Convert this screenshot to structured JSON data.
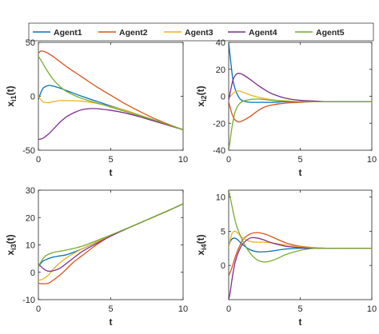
{
  "legend": {
    "placement": "top",
    "entries": [
      {
        "name": "Agent1",
        "color": "#0072BD"
      },
      {
        "name": "Agent2",
        "color": "#D95319"
      },
      {
        "name": "Agent3",
        "color": "#EDB120"
      },
      {
        "name": "Agent4",
        "color": "#7E2F8E"
      },
      {
        "name": "Agent5",
        "color": "#77AC30"
      }
    ]
  },
  "chart_data": [
    {
      "type": "line",
      "xlabel": "t",
      "ylabel": "x_i1(t)",
      "ylabel_main": "x",
      "ylabel_sub": "i1",
      "ylabel_tail": "(t)",
      "xlim": [
        0,
        10
      ],
      "ylim": [
        -50,
        50
      ],
      "xticks": [
        "0",
        "5",
        "10"
      ],
      "yticks": [
        "-50",
        "0",
        "50"
      ],
      "series": [
        {
          "name": "Agent1",
          "x": [
            0,
            0.3,
            0.7,
            1,
            1.5,
            2,
            3,
            4,
            5,
            6,
            7,
            8,
            9,
            10
          ],
          "y": [
            -3,
            7,
            10,
            9.5,
            7.5,
            5,
            0,
            -4.5,
            -9,
            -13,
            -17.5,
            -22,
            -26.5,
            -31
          ]
        },
        {
          "name": "Agent2",
          "x": [
            0,
            0.2,
            0.5,
            1,
            1.5,
            2,
            3,
            4,
            5,
            6,
            7,
            8,
            9,
            10
          ],
          "y": [
            40,
            42,
            41,
            37,
            32,
            27,
            18,
            9,
            1,
            -7,
            -14,
            -20.5,
            -26,
            -31
          ]
        },
        {
          "name": "Agent3",
          "x": [
            0,
            0.3,
            0.7,
            1,
            1.5,
            2,
            3,
            4,
            5,
            6,
            7,
            8,
            9,
            10
          ],
          "y": [
            0,
            -5,
            -6,
            -5,
            -4,
            -4,
            -4.5,
            -6.5,
            -9.5,
            -13,
            -17.5,
            -22,
            -26.5,
            -31
          ]
        },
        {
          "name": "Agent4",
          "x": [
            0,
            0.3,
            0.7,
            1,
            1.5,
            2,
            2.5,
            3,
            3.5,
            4,
            5,
            6,
            7,
            8,
            9,
            10
          ],
          "y": [
            -40,
            -39,
            -35,
            -31,
            -24,
            -18.5,
            -15,
            -12.5,
            -11.5,
            -11.5,
            -13,
            -15.5,
            -19,
            -23,
            -27,
            -31
          ]
        },
        {
          "name": "Agent5",
          "x": [
            0,
            0.2,
            0.5,
            1,
            1.5,
            2,
            3,
            4,
            5,
            6,
            7,
            8,
            9,
            10
          ],
          "y": [
            37,
            33,
            26,
            16,
            9,
            4,
            -2,
            -6,
            -10,
            -14,
            -18,
            -22,
            -26.5,
            -31
          ]
        }
      ]
    },
    {
      "type": "line",
      "xlabel": "t",
      "ylabel": "x_i2(t)",
      "ylabel_main": "x",
      "ylabel_sub": "i2",
      "ylabel_tail": "(t)",
      "xlim": [
        0,
        10
      ],
      "ylim": [
        -40,
        40
      ],
      "xticks": [
        "0",
        "5",
        "10"
      ],
      "yticks": [
        "-40",
        "-20",
        "0",
        "20",
        "40"
      ],
      "series": [
        {
          "name": "Agent1",
          "x": [
            0,
            0.15,
            0.3,
            0.5,
            0.8,
            1.2,
            1.6,
            2,
            3,
            4,
            5,
            6,
            7,
            8,
            9,
            10
          ],
          "y": [
            40,
            25,
            12,
            4,
            -2,
            -4,
            -4.5,
            -4.5,
            -4.5,
            -4,
            -4,
            -4,
            -4,
            -4,
            -4,
            -4
          ]
        },
        {
          "name": "Agent2",
          "x": [
            0,
            0.2,
            0.4,
            0.7,
            1,
            1.5,
            2,
            2.5,
            3,
            4,
            5,
            6,
            7,
            8,
            10
          ],
          "y": [
            -4,
            -12,
            -17,
            -19,
            -18,
            -15,
            -11,
            -8,
            -6.5,
            -5,
            -4.5,
            -4,
            -4,
            -4,
            -4
          ]
        },
        {
          "name": "Agent3",
          "x": [
            0,
            0.2,
            0.4,
            0.7,
            1,
            1.5,
            2,
            3,
            4,
            5,
            6,
            7,
            8,
            10
          ],
          "y": [
            -1,
            1,
            3,
            4,
            3,
            1,
            -0.5,
            -2.5,
            -3.5,
            -4,
            -4,
            -4,
            -4,
            -4
          ]
        },
        {
          "name": "Agent4",
          "x": [
            0,
            0.15,
            0.3,
            0.5,
            0.7,
            1,
            1.5,
            2,
            2.5,
            3,
            4,
            5,
            6,
            7,
            8,
            10
          ],
          "y": [
            -3,
            5,
            12,
            16,
            17,
            16,
            12.5,
            8.5,
            5,
            2,
            -1.5,
            -3,
            -3.5,
            -4,
            -4,
            -4
          ]
        },
        {
          "name": "Agent5",
          "x": [
            0,
            0.1,
            0.2,
            0.35,
            0.5,
            0.8,
            1.2,
            2,
            3,
            4,
            5,
            6,
            8,
            10
          ],
          "y": [
            -40,
            -33,
            -25,
            -16,
            -10,
            -5,
            -3,
            -2,
            -3,
            -3.5,
            -4,
            -4,
            -4,
            -4
          ]
        }
      ]
    },
    {
      "type": "line",
      "xlabel": "t",
      "ylabel": "x_i3(t)",
      "ylabel_main": "x",
      "ylabel_sub": "i3",
      "ylabel_tail": "(t)",
      "xlim": [
        0,
        10
      ],
      "ylim": [
        -10,
        30
      ],
      "xticks": [
        "0",
        "5",
        "10"
      ],
      "yticks": [
        "-10",
        "0",
        "10",
        "20",
        "30"
      ],
      "series": [
        {
          "name": "Agent1",
          "x": [
            0,
            0.3,
            0.7,
            1,
            1.5,
            2,
            3,
            4,
            5,
            6,
            7,
            8,
            9,
            10
          ],
          "y": [
            2,
            4,
            5,
            5.5,
            6,
            6.5,
            8.5,
            11,
            13.5,
            15.7,
            18,
            20.3,
            22.6,
            25
          ]
        },
        {
          "name": "Agent2",
          "x": [
            0,
            0.3,
            0.7,
            1,
            1.5,
            2,
            2.5,
            3,
            4,
            5,
            6,
            7,
            8,
            9,
            10
          ],
          "y": [
            -4,
            -4.2,
            -4,
            -3,
            -1,
            1.5,
            4,
            6,
            10,
            13.3,
            15.7,
            18,
            20.3,
            22.6,
            25
          ]
        },
        {
          "name": "Agent3",
          "x": [
            0,
            0.3,
            0.7,
            1,
            1.5,
            2,
            3,
            4,
            5,
            6,
            7,
            8,
            9,
            10
          ],
          "y": [
            -3,
            -2.5,
            -1,
            1,
            3.5,
            5.5,
            8.5,
            11,
            13.4,
            15.7,
            18,
            20.3,
            22.6,
            25
          ]
        },
        {
          "name": "Agent4",
          "x": [
            0,
            0.3,
            0.6,
            1,
            1.5,
            2,
            2.5,
            3,
            4,
            5,
            6,
            7,
            8,
            9,
            10
          ],
          "y": [
            3,
            1.5,
            0.5,
            0.5,
            1.5,
            3.5,
            5.5,
            7.5,
            10.5,
            13.2,
            15.7,
            18,
            20.3,
            22.6,
            25
          ]
        },
        {
          "name": "Agent5",
          "x": [
            0,
            0.2,
            0.5,
            1,
            1.5,
            2,
            3,
            4,
            5,
            6,
            7,
            8,
            9,
            10
          ],
          "y": [
            2,
            4,
            6,
            7.2,
            7.7,
            8.2,
            9.5,
            11.5,
            13.6,
            15.8,
            18,
            20.3,
            22.6,
            25
          ]
        }
      ]
    },
    {
      "type": "line",
      "xlabel": "t",
      "ylabel": "x_i4(t)",
      "ylabel_main": "x",
      "ylabel_sub": "i4",
      "ylabel_tail": "(t)",
      "xlim": [
        0,
        10
      ],
      "ylim": [
        -5,
        11
      ],
      "xticks": [
        "0",
        "5",
        "10"
      ],
      "yticks": [
        "0",
        "5",
        "10"
      ],
      "series": [
        {
          "name": "Agent1",
          "x": [
            0,
            0.2,
            0.4,
            0.6,
            1,
            1.5,
            2,
            2.5,
            3,
            4,
            5,
            6,
            7,
            8,
            10
          ],
          "y": [
            3,
            3.8,
            4,
            3.8,
            3,
            2.3,
            2,
            2,
            2.1,
            2.4,
            2.5,
            2.5,
            2.5,
            2.5,
            2.5
          ]
        },
        {
          "name": "Agent2",
          "x": [
            0,
            0.2,
            0.5,
            0.8,
            1,
            1.5,
            2,
            2.5,
            3,
            4,
            5,
            6,
            7,
            8,
            10
          ],
          "y": [
            -1.5,
            -0.5,
            1.5,
            3,
            3.8,
            4.6,
            4.8,
            4.6,
            4.2,
            3.3,
            2.8,
            2.6,
            2.5,
            2.5,
            2.5
          ]
        },
        {
          "name": "Agent3",
          "x": [
            0,
            0.2,
            0.4,
            0.6,
            1,
            1.5,
            2,
            2.5,
            3,
            4,
            5,
            6,
            7,
            8,
            10
          ],
          "y": [
            2.5,
            4.5,
            5,
            4.8,
            4,
            3.5,
            3.4,
            3.4,
            3.3,
            3,
            2.7,
            2.6,
            2.5,
            2.5,
            2.5
          ]
        },
        {
          "name": "Agent4",
          "x": [
            0,
            0.1,
            0.2,
            0.4,
            0.6,
            0.8,
            1,
            1.5,
            2,
            2.5,
            3,
            4,
            5,
            6,
            7,
            8,
            10
          ],
          "y": [
            -5,
            -4,
            -2.5,
            0,
            1.5,
            2.5,
            3.2,
            4,
            4,
            3.7,
            3.3,
            2.8,
            2.6,
            2.5,
            2.5,
            2.5,
            2.5
          ]
        },
        {
          "name": "Agent5",
          "x": [
            0,
            0.2,
            0.4,
            0.6,
            1,
            1.5,
            2,
            2.5,
            3,
            3.5,
            4,
            5,
            6,
            7,
            8,
            10
          ],
          "y": [
            11,
            9,
            7,
            5.5,
            3.5,
            1.8,
            0.8,
            0.5,
            0.7,
            1.1,
            1.6,
            2.2,
            2.5,
            2.5,
            2.5,
            2.5
          ]
        }
      ]
    }
  ]
}
